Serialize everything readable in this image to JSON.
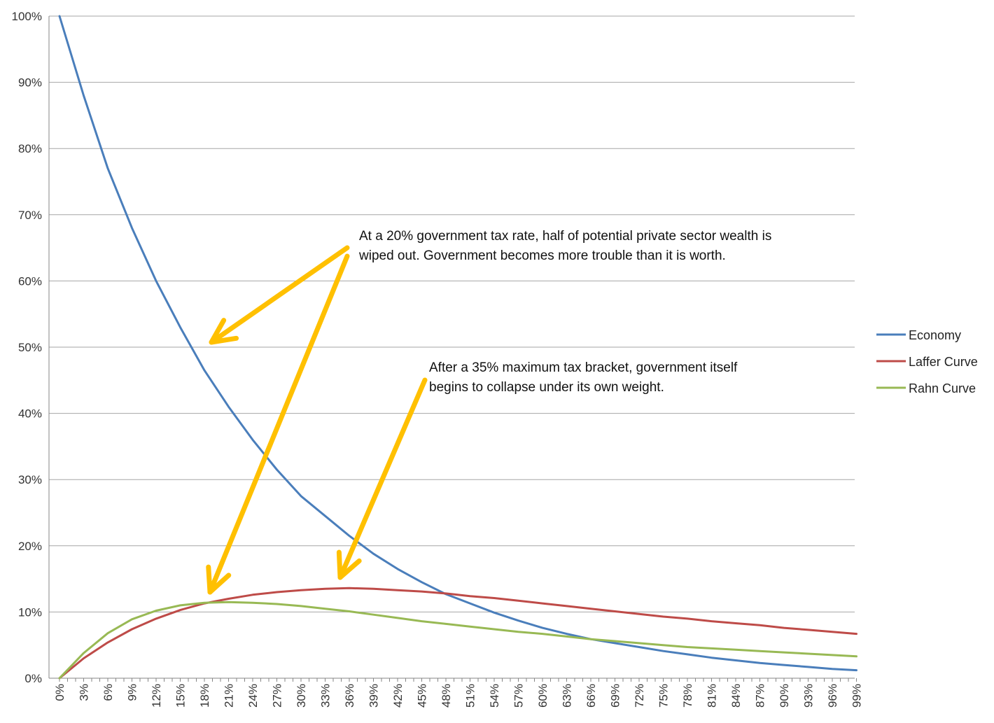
{
  "chart_data": {
    "type": "line",
    "title": "",
    "xlabel": "",
    "ylabel": "",
    "x_range": [
      0,
      100
    ],
    "ylim": [
      0,
      100
    ],
    "y_ticks": [
      "0%",
      "10%",
      "20%",
      "30%",
      "40%",
      "50%",
      "60%",
      "70%",
      "80%",
      "90%",
      "100%"
    ],
    "x_ticks": [
      "0%",
      "3%",
      "6%",
      "9%",
      "12%",
      "15%",
      "18%",
      "21%",
      "24%",
      "27%",
      "30%",
      "33%",
      "36%",
      "39%",
      "42%",
      "45%",
      "48%",
      "51%",
      "54%",
      "57%",
      "60%",
      "63%",
      "66%",
      "69%",
      "72%",
      "75%",
      "78%",
      "81%",
      "84%",
      "87%",
      "90%",
      "93%",
      "96%",
      "99%"
    ],
    "grid": true,
    "legend_position": "right",
    "series": [
      {
        "name": "Economy",
        "color": "#4a7ebb",
        "x": [
          0,
          3,
          6,
          9,
          12,
          15,
          18,
          21,
          24,
          27,
          30,
          33,
          36,
          39,
          42,
          45,
          48,
          51,
          54,
          57,
          60,
          63,
          66,
          69,
          72,
          75,
          78,
          81,
          84,
          87,
          90,
          93,
          96,
          99
        ],
        "values": [
          100,
          88,
          77,
          68,
          60,
          53,
          46.5,
          41,
          36,
          31.5,
          27.5,
          24.5,
          21.5,
          18.8,
          16.5,
          14.5,
          12.7,
          11.3,
          9.9,
          8.7,
          7.6,
          6.7,
          5.9,
          5.3,
          4.7,
          4.1,
          3.6,
          3.1,
          2.7,
          2.3,
          2.0,
          1.7,
          1.4,
          1.2
        ]
      },
      {
        "name": "Laffer Curve",
        "color": "#be4b48",
        "x": [
          0,
          3,
          6,
          9,
          12,
          15,
          18,
          21,
          24,
          27,
          30,
          33,
          36,
          39,
          42,
          45,
          48,
          51,
          54,
          57,
          60,
          63,
          66,
          69,
          72,
          75,
          78,
          81,
          84,
          87,
          90,
          93,
          96,
          99
        ],
        "values": [
          0,
          3.0,
          5.4,
          7.4,
          9.0,
          10.3,
          11.3,
          12.0,
          12.6,
          13.0,
          13.3,
          13.5,
          13.6,
          13.5,
          13.3,
          13.1,
          12.8,
          12.4,
          12.1,
          11.7,
          11.3,
          10.9,
          10.5,
          10.1,
          9.7,
          9.3,
          9.0,
          8.6,
          8.3,
          8.0,
          7.6,
          7.3,
          7.0,
          6.7
        ]
      },
      {
        "name": "Rahn Curve",
        "color": "#98b954",
        "x": [
          0,
          3,
          6,
          9,
          12,
          15,
          18,
          21,
          24,
          27,
          30,
          33,
          36,
          39,
          42,
          45,
          48,
          51,
          54,
          57,
          60,
          63,
          66,
          69,
          72,
          75,
          78,
          81,
          84,
          87,
          90,
          93,
          96,
          99
        ],
        "values": [
          0,
          3.8,
          6.8,
          8.9,
          10.2,
          11.0,
          11.4,
          11.5,
          11.4,
          11.2,
          10.9,
          10.5,
          10.1,
          9.6,
          9.1,
          8.6,
          8.2,
          7.8,
          7.4,
          7.0,
          6.7,
          6.3,
          5.9,
          5.6,
          5.3,
          5.0,
          4.7,
          4.5,
          4.3,
          4.1,
          3.9,
          3.7,
          3.5,
          3.3
        ]
      }
    ],
    "annotations": [
      {
        "lines": [
          "At a 20% government tax rate, half of potential private sector wealth is",
          "wiped out. Government becomes more trouble than it is worth."
        ]
      },
      {
        "lines": [
          "After a 35% maximum tax bracket, government itself",
          "begins to collapse under its own weight."
        ]
      }
    ],
    "arrow_color": "#ffc000"
  }
}
